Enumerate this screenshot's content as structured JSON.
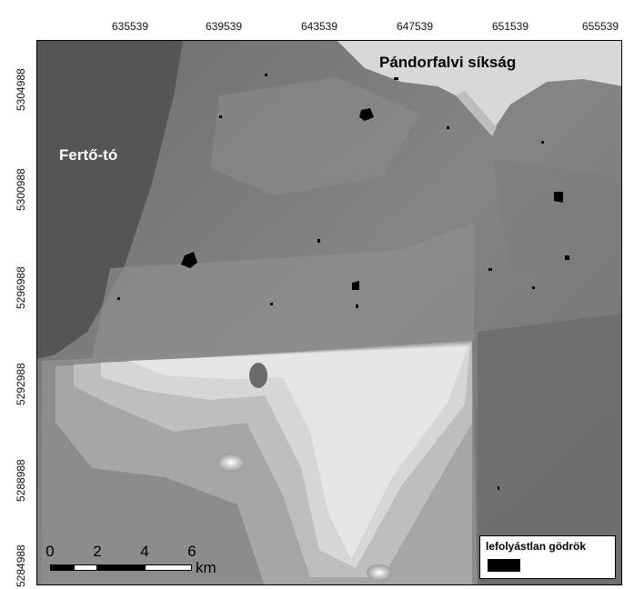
{
  "x_ticks": [
    "635539",
    "639539",
    "643539",
    "647539",
    "651539",
    "655539"
  ],
  "y_ticks": [
    "5304988",
    "5300988",
    "5296988",
    "5292988",
    "5288988",
    "5284988"
  ],
  "labels": {
    "plain": "Pándorfalvi síkság",
    "lake": "Fertő-tó"
  },
  "legend": {
    "title": "lefolyástlan gödrök",
    "swatch_color": "#000000"
  },
  "scalebar": {
    "ticks": [
      "0",
      "2",
      "4",
      "6"
    ],
    "unit": "km"
  },
  "colors": {
    "lake": "#555555",
    "terrain_mid": "#7a7a7a",
    "terrain_light": "#a8a8a8",
    "plain": "#d8d8d8",
    "depressions": "#000000"
  }
}
